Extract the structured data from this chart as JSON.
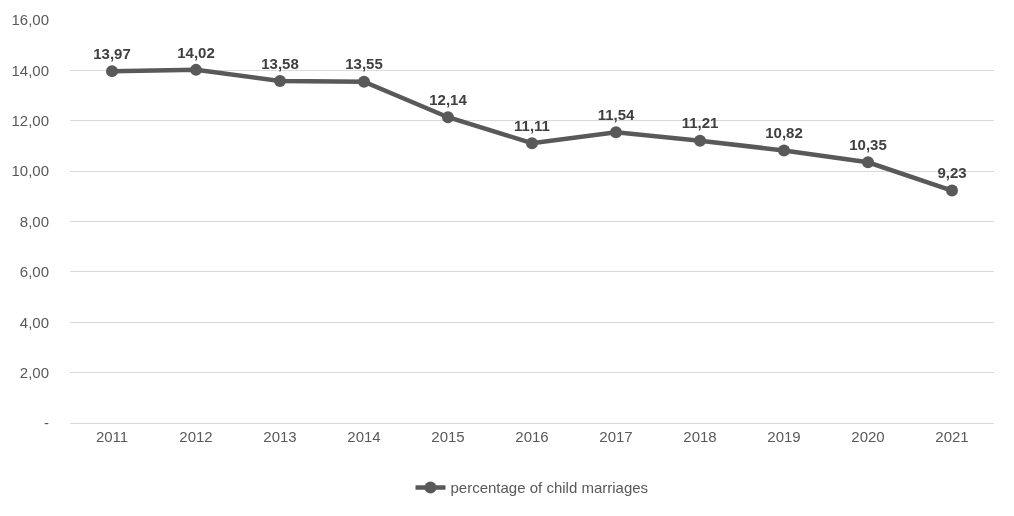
{
  "chart_data": {
    "type": "line",
    "categories": [
      "2011",
      "2012",
      "2013",
      "2014",
      "2015",
      "2016",
      "2017",
      "2018",
      "2019",
      "2020",
      "2021"
    ],
    "series": [
      {
        "name": "percentage of child marriages",
        "color": "#595959",
        "values": [
          13.97,
          14.02,
          13.58,
          13.55,
          12.14,
          11.11,
          11.54,
          11.21,
          10.82,
          10.35,
          9.23
        ],
        "value_labels": [
          "13,97",
          "14,02",
          "13,58",
          "13,55",
          "12,14",
          "11,11",
          "11,54",
          "11,21",
          "10,82",
          "10,35",
          "9,23"
        ]
      }
    ],
    "ylim": [
      0,
      16
    ],
    "yticks": [
      {
        "value": 0,
        "label": "-"
      },
      {
        "value": 2,
        "label": "2,00"
      },
      {
        "value": 4,
        "label": "4,00"
      },
      {
        "value": 6,
        "label": "6,00"
      },
      {
        "value": 8,
        "label": "8,00"
      },
      {
        "value": 10,
        "label": "10,00"
      },
      {
        "value": 12,
        "label": "12,00"
      },
      {
        "value": 14,
        "label": "14,00"
      },
      {
        "value": 16,
        "label": "16,00"
      }
    ],
    "grid": "y",
    "legend": "bottom",
    "marker": "circle",
    "line_style": "solid"
  }
}
